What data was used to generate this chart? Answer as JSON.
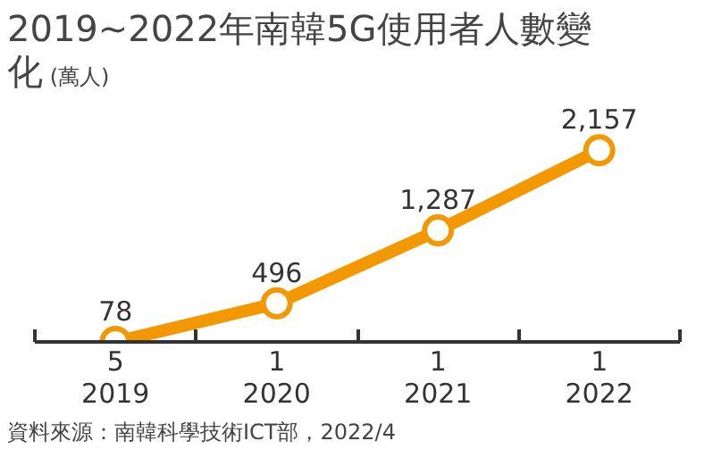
{
  "chart_data": {
    "type": "line",
    "title": "2019~2022年南韓5G使用者人數變化",
    "subtitle": "(萬人)",
    "categories": [
      "5\n2019",
      "1\n2020",
      "1\n2021",
      "1\n2022"
    ],
    "series": [
      {
        "color": "#f39800",
        "values": [
          78,
          496,
          1287,
          2157
        ],
        "value_labels": [
          "78",
          "496",
          "1,287",
          "2,157"
        ]
      }
    ],
    "marker": "circle",
    "grid": false,
    "annotations": [
      "資料來源：南韓科學技術ICT部，2022/4"
    ]
  }
}
